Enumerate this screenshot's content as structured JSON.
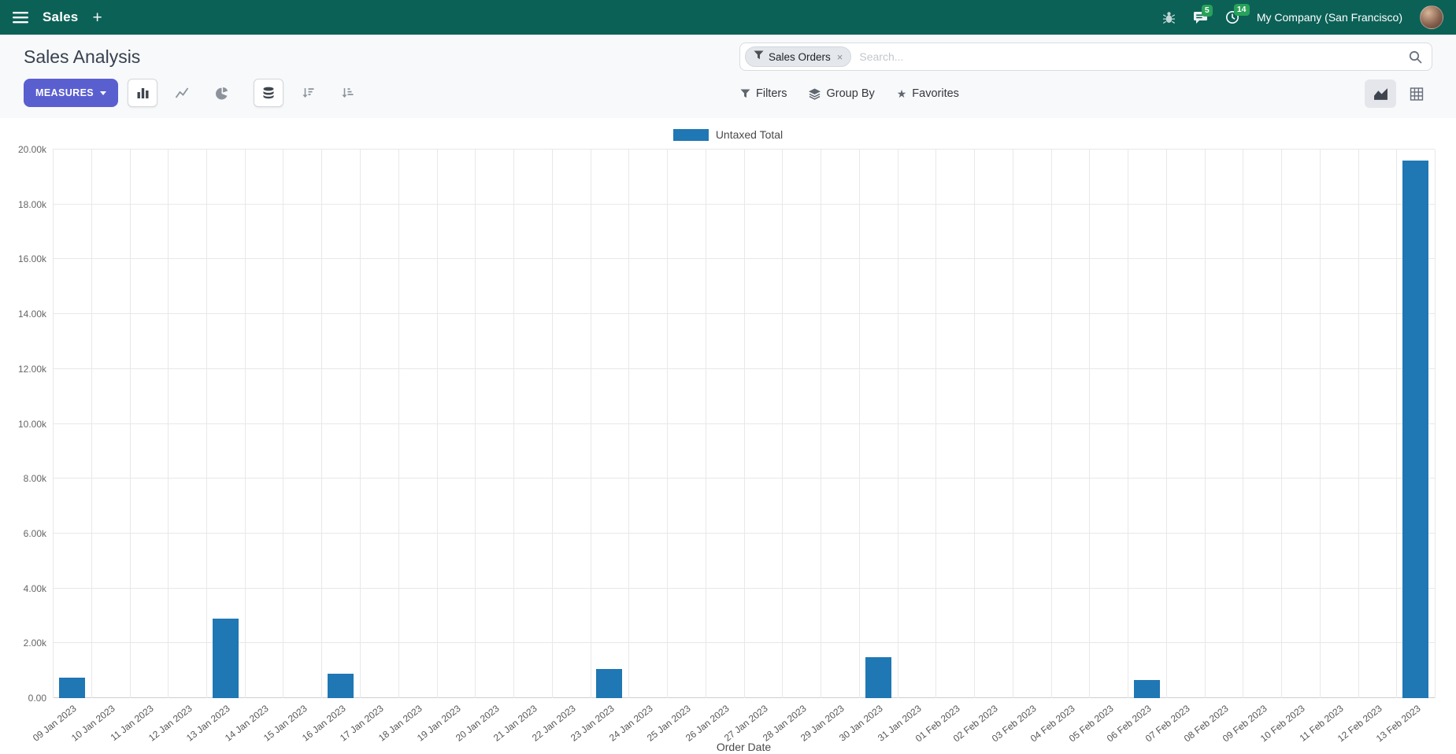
{
  "navbar": {
    "app_name": "Sales",
    "plus": "+",
    "messages_badge": "5",
    "activities_badge": "14",
    "company": "My Company (San Francisco)"
  },
  "control_panel": {
    "title": "Sales Analysis",
    "search": {
      "facet_label": "Sales Orders",
      "facet_remove": "×",
      "placeholder": "Search..."
    },
    "toolbar": {
      "measures": "MEASURES",
      "filters": "Filters",
      "group_by": "Group By",
      "favorites": "Favorites",
      "star_glyph": "★"
    }
  },
  "chart_data": {
    "type": "bar",
    "title": "",
    "legend": [
      "Untaxed Total"
    ],
    "series_color": "#1f77b4",
    "xlabel": "Order Date",
    "ylim": [
      0,
      20000
    ],
    "grid": true,
    "legend_position": "top-center",
    "yticks": [
      "0.00",
      "2.00k",
      "4.00k",
      "6.00k",
      "8.00k",
      "10.00k",
      "12.00k",
      "14.00k",
      "16.00k",
      "18.00k",
      "20.00k"
    ],
    "categories": [
      "09 Jan 2023",
      "10 Jan 2023",
      "11 Jan 2023",
      "12 Jan 2023",
      "13 Jan 2023",
      "14 Jan 2023",
      "15 Jan 2023",
      "16 Jan 2023",
      "17 Jan 2023",
      "18 Jan 2023",
      "19 Jan 2023",
      "20 Jan 2023",
      "21 Jan 2023",
      "22 Jan 2023",
      "23 Jan 2023",
      "24 Jan 2023",
      "25 Jan 2023",
      "26 Jan 2023",
      "27 Jan 2023",
      "28 Jan 2023",
      "29 Jan 2023",
      "30 Jan 2023",
      "31 Jan 2023",
      "01 Feb 2023",
      "02 Feb 2023",
      "03 Feb 2023",
      "04 Feb 2023",
      "05 Feb 2023",
      "06 Feb 2023",
      "07 Feb 2023",
      "08 Feb 2023",
      "09 Feb 2023",
      "10 Feb 2023",
      "11 Feb 2023",
      "12 Feb 2023",
      "13 Feb 2023"
    ],
    "values": [
      750,
      0,
      0,
      0,
      2900,
      0,
      0,
      900,
      0,
      0,
      0,
      0,
      0,
      0,
      1050,
      0,
      0,
      0,
      0,
      0,
      0,
      1500,
      0,
      0,
      0,
      0,
      0,
      0,
      650,
      0,
      0,
      0,
      0,
      0,
      0,
      19600
    ]
  }
}
